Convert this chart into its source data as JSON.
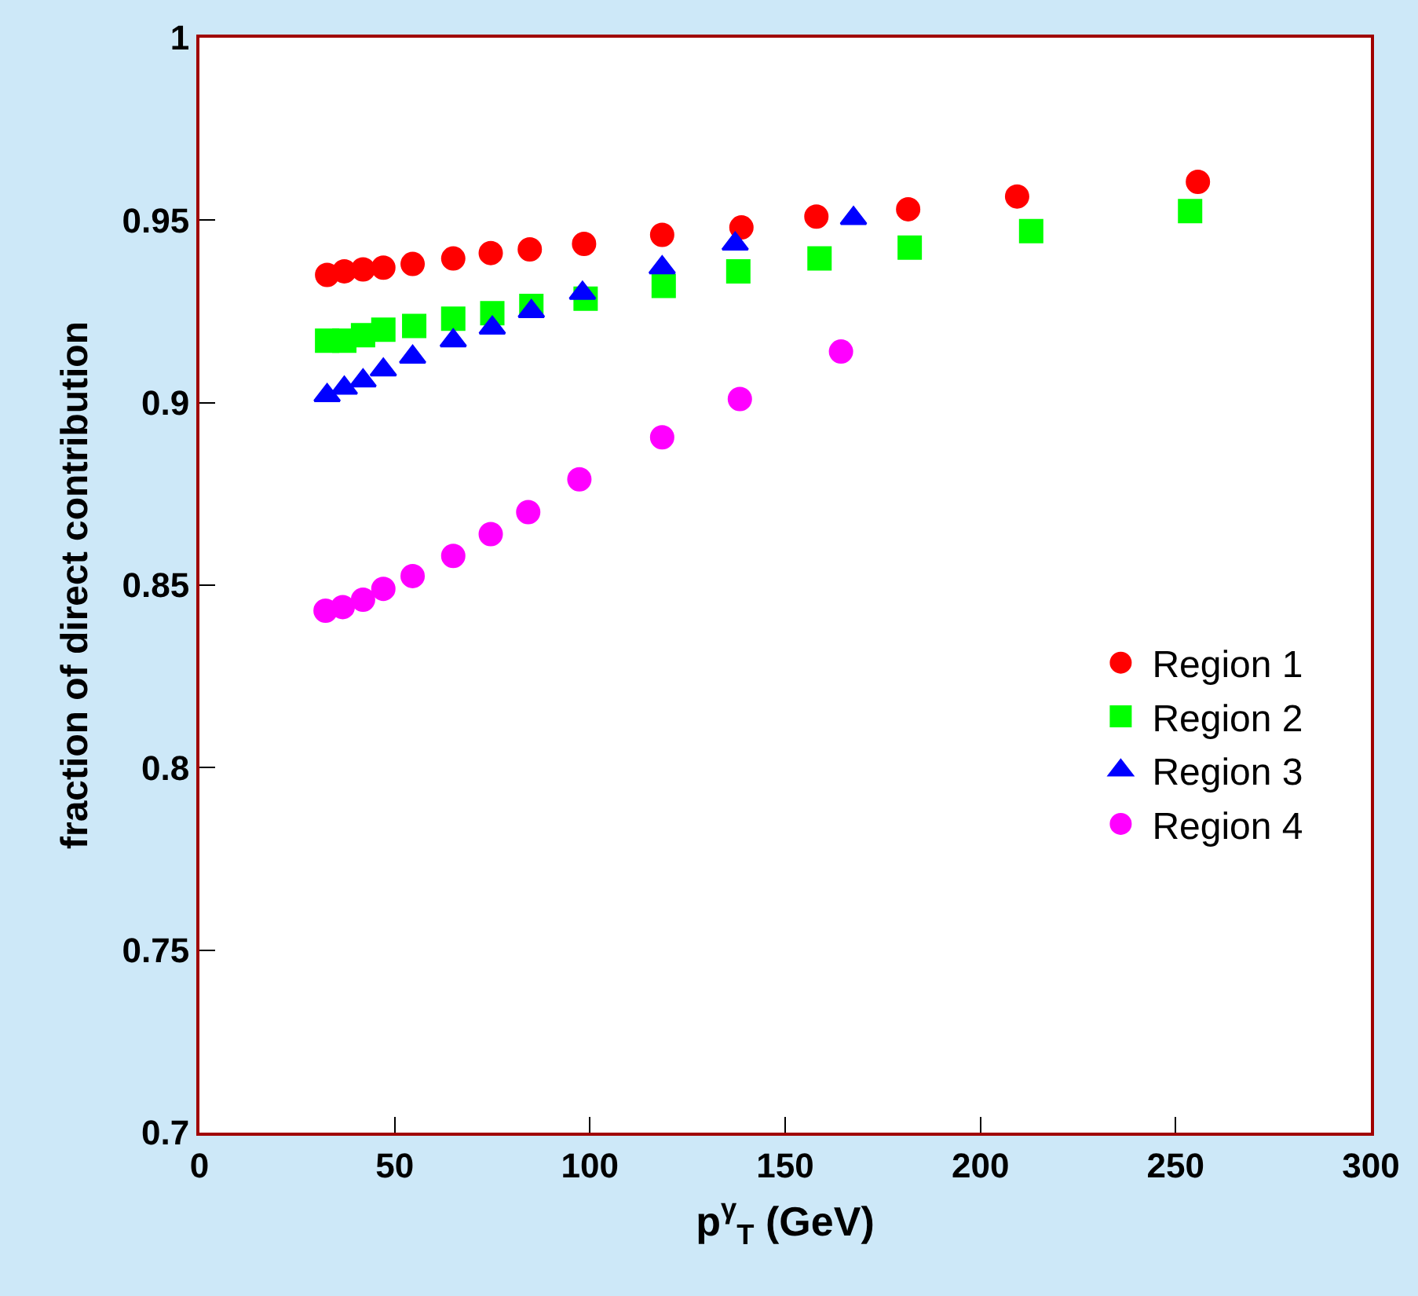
{
  "chart_data": {
    "type": "scatter",
    "xlabel": "p$^{γ}$$_{T}$ (GeV)",
    "ylabel": "fraction of direct contribution",
    "xlim": [
      0,
      300
    ],
    "xticks": [
      0,
      50,
      100,
      150,
      200,
      250,
      300
    ],
    "ylim": [
      0.7,
      1
    ],
    "yticks": [
      0.7,
      0.75,
      0.8,
      0.85,
      0.9,
      0.95,
      1
    ],
    "legend": "bottom right",
    "series": [
      {
        "name": "Region 1",
        "color": "#ff0000",
        "marker": "circle",
        "x": [
          32.7,
          37.1,
          41.9,
          47.1,
          54.6,
          65.0,
          74.6,
          84.6,
          98.5,
          118.5,
          138.8,
          158.0,
          181.5,
          209.4,
          255.7
        ],
        "values": [
          0.935,
          0.936,
          0.9365,
          0.937,
          0.938,
          0.9395,
          0.941,
          0.942,
          0.9435,
          0.946,
          0.948,
          0.951,
          0.953,
          0.9565,
          0.9605
        ]
      },
      {
        "name": "Region 2",
        "color": "#00ff00",
        "marker": "square",
        "x": [
          32.7,
          37.1,
          41.9,
          47.1,
          55.0,
          65.0,
          75.0,
          85.0,
          98.9,
          118.9,
          138.0,
          158.8,
          181.9,
          213.0,
          253.7
        ],
        "values": [
          0.917,
          0.917,
          0.9185,
          0.92,
          0.921,
          0.923,
          0.9245,
          0.9265,
          0.9285,
          0.932,
          0.936,
          0.9395,
          0.9425,
          0.947,
          0.9525
        ]
      },
      {
        "name": "Region 3",
        "color": "#0000ff",
        "marker": "triangle",
        "x": [
          32.7,
          37.1,
          41.9,
          47.1,
          54.6,
          65.0,
          75.0,
          85.0,
          98.1,
          118.5,
          137.2,
          167.5
        ],
        "values": [
          0.902,
          0.904,
          0.906,
          0.909,
          0.9125,
          0.917,
          0.9205,
          0.925,
          0.93,
          0.937,
          0.9435,
          0.9505
        ]
      },
      {
        "name": "Region 4",
        "color": "#ff00ff",
        "marker": "circle",
        "x": [
          32.3,
          36.7,
          41.9,
          47.1,
          54.6,
          65.0,
          74.6,
          84.2,
          97.3,
          118.5,
          138.4,
          164.3
        ],
        "values": [
          0.843,
          0.844,
          0.846,
          0.849,
          0.8525,
          0.858,
          0.864,
          0.87,
          0.879,
          0.8905,
          0.901,
          0.914
        ]
      }
    ]
  }
}
